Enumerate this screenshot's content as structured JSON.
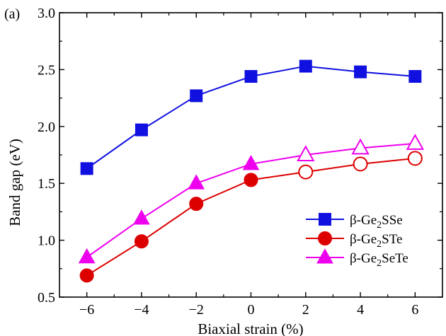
{
  "chart_data": {
    "type": "line",
    "panel_label": "(a)",
    "xlabel": "Biaxial strain (%)",
    "ylabel": "Band gap (eV)",
    "xlim": [
      -7,
      7
    ],
    "ylim": [
      0.5,
      3.0
    ],
    "xticks": [
      -6,
      -4,
      -2,
      0,
      2,
      4,
      6
    ],
    "xtick_labels": [
      "−6",
      "−4",
      "−2",
      "0",
      "2",
      "4",
      "6"
    ],
    "yticks": [
      0.5,
      1.0,
      1.5,
      2.0,
      2.5,
      3.0
    ],
    "ytick_labels": [
      "0.5",
      "1.0",
      "1.5",
      "2.0",
      "2.5",
      "3.0"
    ],
    "grid": false,
    "legend_position": "bottom-right",
    "x": [
      -6,
      -4,
      -2,
      0,
      2,
      4,
      6
    ],
    "series": [
      {
        "name_prefix": "β-Ge",
        "name_sub": "2",
        "name_suffix": "SSe",
        "color": "#1010e0",
        "marker": "square",
        "values": [
          1.63,
          1.97,
          2.27,
          2.44,
          2.53,
          2.48,
          2.44
        ],
        "hollow": [
          false,
          false,
          false,
          false,
          false,
          false,
          false
        ]
      },
      {
        "name_prefix": "β-Ge",
        "name_sub": "2",
        "name_suffix": "STe",
        "color": "#dd0000",
        "marker": "circle",
        "values": [
          0.69,
          0.99,
          1.32,
          1.53,
          1.6,
          1.67,
          1.72
        ],
        "hollow": [
          false,
          false,
          false,
          false,
          true,
          true,
          true
        ]
      },
      {
        "name_prefix": "β-Ge",
        "name_sub": "2",
        "name_suffix": "SeTe",
        "color": "#ee00ee",
        "marker": "triangle",
        "values": [
          0.85,
          1.19,
          1.5,
          1.67,
          1.75,
          1.81,
          1.85
        ],
        "hollow": [
          false,
          false,
          false,
          false,
          true,
          true,
          true
        ]
      }
    ]
  }
}
